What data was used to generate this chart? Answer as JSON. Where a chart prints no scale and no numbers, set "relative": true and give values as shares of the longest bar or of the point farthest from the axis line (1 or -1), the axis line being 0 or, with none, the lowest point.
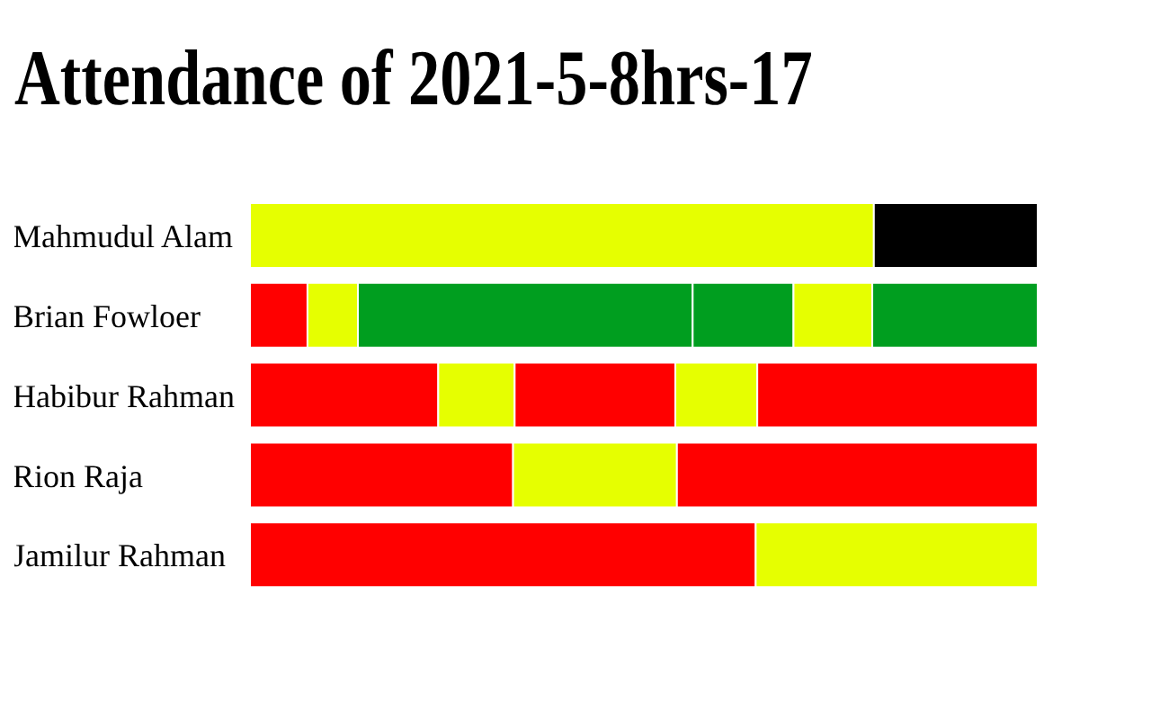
{
  "chart_data": {
    "type": "bar",
    "title": "Attendance of 2021-5-8hrs-17",
    "orientation": "horizontal",
    "stacked": true,
    "relative": true,
    "categories": [
      "Mahmudul Alam",
      "Brian Fowloer",
      "Habibur Rahman",
      "Rion Raja",
      "Jamilur Rahman"
    ],
    "series": [
      {
        "colors": [
          "#e6ff00",
          "#ff0000",
          "#ff0000",
          "#ff0000",
          "#ff0000"
        ],
        "values": [
          0.792,
          0.073,
          0.239,
          0.334,
          0.642
        ]
      },
      {
        "colors": [
          "#000000",
          "#e6ff00",
          "#e6ff00",
          "#e6ff00",
          "#e6ff00"
        ],
        "values": [
          0.208,
          0.064,
          0.097,
          0.208,
          0.358
        ]
      },
      {
        "colors": [
          null,
          "#009e1f",
          "#ff0000",
          "#ff0000",
          null
        ],
        "values": [
          null,
          0.425,
          0.204,
          0.458,
          null
        ]
      },
      {
        "colors": [
          null,
          "#009e1f",
          "#e6ff00",
          null,
          null
        ],
        "values": [
          null,
          0.128,
          0.104,
          null,
          null
        ]
      },
      {
        "colors": [
          null,
          "#e6ff00",
          "#ff0000",
          null,
          null
        ],
        "values": [
          null,
          0.1,
          0.356,
          null,
          null
        ]
      },
      {
        "colors": [
          null,
          "#009e1f",
          null,
          null,
          null
        ],
        "values": [
          null,
          0.21,
          null,
          null,
          null
        ]
      }
    ]
  }
}
